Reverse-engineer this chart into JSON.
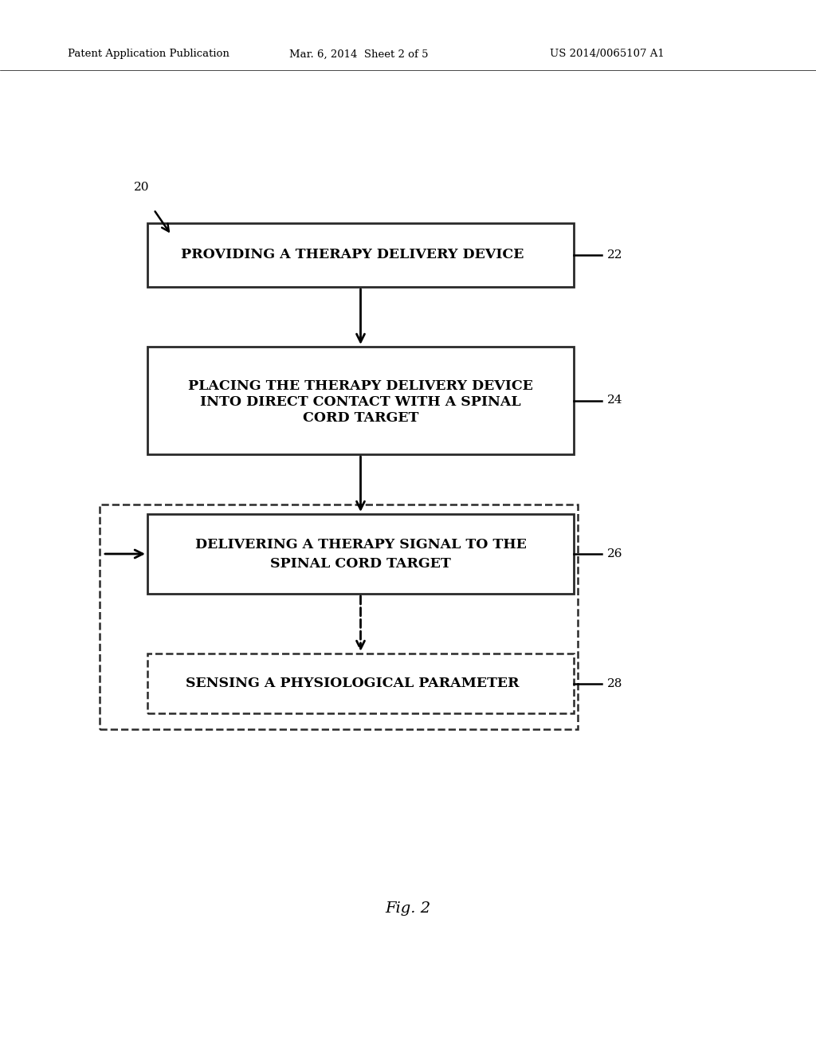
{
  "bg_color": "#ffffff",
  "header_left": "Patent Application Publication",
  "header_mid": "Mar. 6, 2014  Sheet 2 of 5",
  "header_right": "US 2014/0065107 A1",
  "label_20": "20",
  "label_22": "22",
  "label_24": "24",
  "label_26": "26",
  "label_28": "28",
  "box1_text": "PROVIDING A THERAPY DELIVERY DEVICE",
  "box2_line1": "PLACING THE THERAPY DELIVERY DEVICE",
  "box2_line2": "INTO DIRECT CONTACT WITH A SPINAL",
  "box2_line3": "CORD TARGET",
  "box3_line1": "DELIVERING A THERAPY SIGNAL TO THE",
  "box3_line2": "SPINAL CORD TARGET",
  "box4_text": "SENSING A PHYSIOLOGICAL PARAMETER",
  "fig_caption": "Fig. 2",
  "text_color": "#000000",
  "bg_color2": "#ffffff"
}
